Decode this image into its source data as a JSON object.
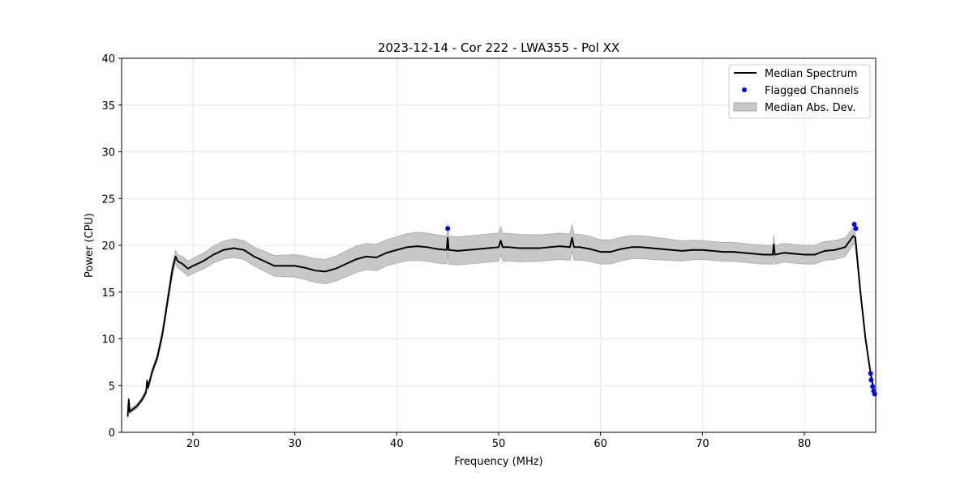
{
  "chart_data": {
    "type": "line",
    "title": "2023-12-14 - Cor 222 - LWA355 - Pol XX",
    "xlabel": "Frequency (MHz)",
    "ylabel": "Power (CPU)",
    "xlim": [
      13,
      87
    ],
    "ylim": [
      0,
      40
    ],
    "xticks": [
      20,
      30,
      40,
      50,
      60,
      70,
      80
    ],
    "yticks": [
      0,
      5,
      10,
      15,
      20,
      25,
      30,
      35,
      40
    ],
    "grid": true,
    "legend": {
      "placement": "top-right",
      "entries": [
        "Median Spectrum",
        "Flagged Channels",
        "Median Abs. Dev."
      ]
    },
    "colors": {
      "median": "#000000",
      "flagged": "#0000ff",
      "mad": "#c8c8c8"
    },
    "series": [
      {
        "name": "Median Spectrum",
        "x": [
          13.6,
          13.7,
          13.8,
          13.9,
          14.5,
          15,
          15.4,
          15.5,
          15.6,
          16,
          16.5,
          17,
          17.5,
          18,
          18.3,
          18.5,
          19,
          19.5,
          20,
          21,
          22,
          23,
          24,
          25,
          26,
          27,
          28,
          29,
          30,
          31,
          32,
          33,
          34,
          35,
          36,
          37,
          38,
          39,
          40,
          41,
          42,
          43,
          44,
          44.9,
          45,
          45.1,
          46,
          47,
          48,
          49,
          50,
          50.2,
          50.4,
          51,
          52,
          53,
          54,
          55,
          56,
          57,
          57.2,
          57.4,
          58,
          59,
          60,
          61,
          62,
          63,
          64,
          65,
          66,
          67,
          68,
          69,
          70,
          71,
          72,
          73,
          74,
          75,
          76,
          76.9,
          77,
          77.1,
          78,
          79,
          80,
          81,
          82,
          83,
          84,
          84.8,
          85,
          85.5,
          86,
          86.5,
          86.9
        ],
        "y": [
          1.7,
          3.5,
          2.2,
          2.3,
          2.8,
          3.5,
          4.3,
          5.5,
          4.8,
          6.5,
          8,
          10.5,
          14,
          17.5,
          18.8,
          18.3,
          18,
          17.5,
          17.8,
          18.3,
          19,
          19.5,
          19.7,
          19.5,
          18.8,
          18.3,
          17.8,
          17.8,
          17.8,
          17.6,
          17.3,
          17.2,
          17.5,
          18.0,
          18.5,
          18.8,
          18.7,
          19.2,
          19.5,
          19.8,
          19.9,
          19.8,
          19.6,
          19.5,
          20.8,
          19.5,
          19.4,
          19.5,
          19.6,
          19.7,
          19.8,
          20.5,
          19.8,
          19.8,
          19.7,
          19.7,
          19.7,
          19.8,
          19.9,
          19.8,
          20.8,
          19.8,
          19.8,
          19.6,
          19.3,
          19.3,
          19.6,
          19.8,
          19.8,
          19.7,
          19.6,
          19.5,
          19.4,
          19.5,
          19.5,
          19.4,
          19.3,
          19.3,
          19.2,
          19.1,
          19.0,
          19.0,
          20.1,
          19.0,
          19.2,
          19.1,
          19.0,
          19.0,
          19.4,
          19.5,
          19.8,
          21.0,
          20.8,
          15,
          10,
          6.3,
          4.0
        ]
      },
      {
        "name": "Median Abs. Dev.",
        "x": [
          13.6,
          16,
          18,
          19,
          20,
          22,
          24,
          26,
          28,
          30,
          33,
          36,
          40,
          42,
          45,
          50,
          55,
          57,
          60,
          65,
          70,
          75,
          80,
          82,
          84,
          84.8,
          85,
          85.5,
          86,
          86.9
        ],
        "mad": [
          0.2,
          0.3,
          0.6,
          0.8,
          0.8,
          0.9,
          1.0,
          1.0,
          1.1,
          1.2,
          1.3,
          1.4,
          1.4,
          1.5,
          1.5,
          1.5,
          1.4,
          1.4,
          1.3,
          1.2,
          1.0,
          1.0,
          1.0,
          1.0,
          1.0,
          0.9,
          0.6,
          0.3,
          0.2,
          0.1
        ]
      },
      {
        "name": "Flagged Channels",
        "x": [
          45.0,
          84.9,
          85.05,
          86.5,
          86.55,
          86.7,
          86.8,
          86.9
        ],
        "y": [
          21.8,
          22.25,
          21.8,
          6.3,
          5.6,
          4.9,
          4.4,
          4.1
        ]
      }
    ]
  }
}
